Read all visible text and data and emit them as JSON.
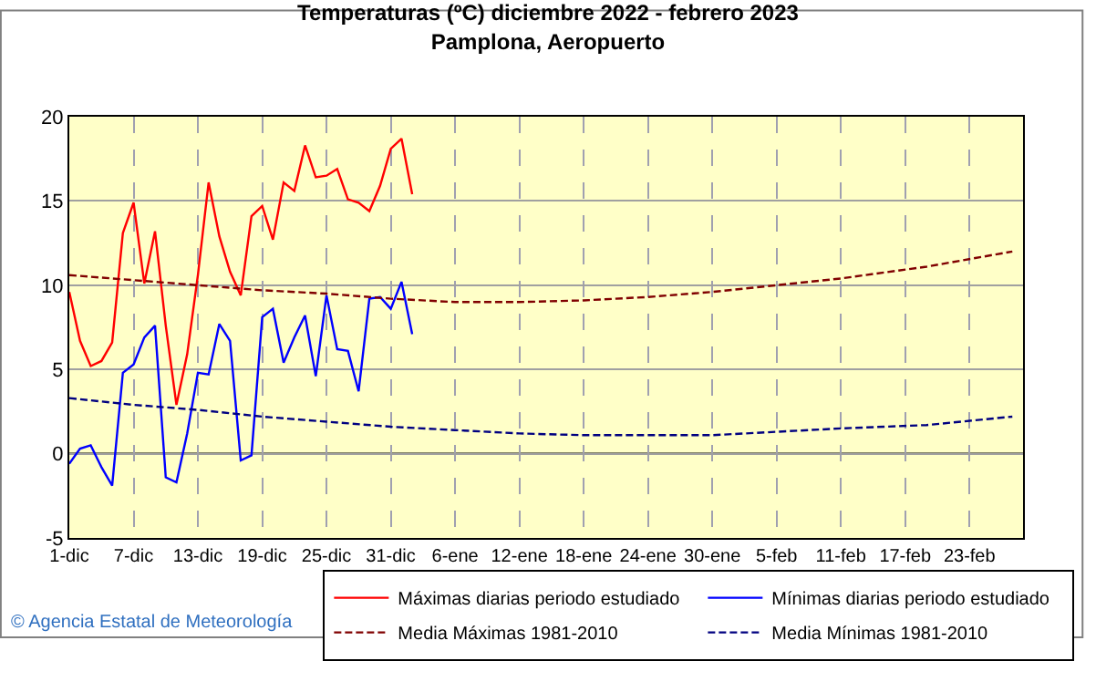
{
  "chart_data": {
    "type": "line",
    "title": "Temperaturas (ºC) diciembre 2022 - febrero 2023",
    "subtitle": "Pamplona, Aeropuerto",
    "xlim": [
      "2022-12-01",
      "2023-02-28"
    ],
    "ylim": [
      -5,
      20
    ],
    "yticks": [
      -5,
      0,
      5,
      10,
      15,
      20
    ],
    "xticks": [
      {
        "value": "2022-12-01",
        "label": "1-dic"
      },
      {
        "value": "2022-12-07",
        "label": "7-dic"
      },
      {
        "value": "2022-12-13",
        "label": "13-dic"
      },
      {
        "value": "2022-12-19",
        "label": "19-dic"
      },
      {
        "value": "2022-12-25",
        "label": "25-dic"
      },
      {
        "value": "2022-12-31",
        "label": "31-dic"
      },
      {
        "value": "2023-01-06",
        "label": "6-ene"
      },
      {
        "value": "2023-01-12",
        "label": "12-ene"
      },
      {
        "value": "2023-01-18",
        "label": "18-ene"
      },
      {
        "value": "2023-01-24",
        "label": "24-ene"
      },
      {
        "value": "2023-01-30",
        "label": "30-ene"
      },
      {
        "value": "2023-02-05",
        "label": "5-feb"
      },
      {
        "value": "2023-02-11",
        "label": "11-feb"
      },
      {
        "value": "2023-02-17",
        "label": "17-feb"
      },
      {
        "value": "2023-02-23",
        "label": "23-feb"
      }
    ],
    "grid": true,
    "legend": "bottom",
    "marker": "none",
    "ref_lines": [
      {
        "axis": "y",
        "value": 0,
        "label": null,
        "color": "#000000"
      }
    ],
    "annotations": [
      "© Agencia Estatal de Meteorología"
    ],
    "series": [
      {
        "name": "Máximas diarias periodo estudiado",
        "color": "#ff0000",
        "line_style": "solid",
        "x": [
          "2022-12-01",
          "2022-12-02",
          "2022-12-03",
          "2022-12-04",
          "2022-12-05",
          "2022-12-06",
          "2022-12-07",
          "2022-12-08",
          "2022-12-09",
          "2022-12-10",
          "2022-12-11",
          "2022-12-12",
          "2022-12-13",
          "2022-12-14",
          "2022-12-15",
          "2022-12-16",
          "2022-12-17",
          "2022-12-18",
          "2022-12-19",
          "2022-12-20",
          "2022-12-21",
          "2022-12-22",
          "2022-12-23",
          "2022-12-24",
          "2022-12-25",
          "2022-12-26",
          "2022-12-27",
          "2022-12-28",
          "2022-12-29",
          "2022-12-30",
          "2022-12-31",
          "2023-01-01",
          "2023-01-02"
        ],
        "values": [
          9.6,
          6.7,
          5.2,
          5.5,
          6.6,
          13.1,
          14.9,
          10.1,
          13.2,
          7.6,
          2.9,
          5.9,
          10.6,
          16.1,
          12.9,
          10.8,
          9.4,
          14.1,
          14.7,
          12.7,
          16.1,
          15.6,
          18.3,
          16.4,
          16.5,
          16.9,
          15.1,
          14.9,
          14.4,
          15.9,
          18.1,
          18.7,
          15.4
        ]
      },
      {
        "name": "Mínimas diarias periodo estudiado",
        "color": "#0000ff",
        "line_style": "solid",
        "x": [
          "2022-12-01",
          "2022-12-02",
          "2022-12-03",
          "2022-12-04",
          "2022-12-05",
          "2022-12-06",
          "2022-12-07",
          "2022-12-08",
          "2022-12-09",
          "2022-12-10",
          "2022-12-11",
          "2022-12-12",
          "2022-12-13",
          "2022-12-14",
          "2022-12-15",
          "2022-12-16",
          "2022-12-17",
          "2022-12-18",
          "2022-12-19",
          "2022-12-20",
          "2022-12-21",
          "2022-12-22",
          "2022-12-23",
          "2022-12-24",
          "2022-12-25",
          "2022-12-26",
          "2022-12-27",
          "2022-12-28",
          "2022-12-29",
          "2022-12-30",
          "2022-12-31",
          "2023-01-01",
          "2023-01-02"
        ],
        "values": [
          -0.6,
          0.3,
          0.5,
          -0.8,
          -1.9,
          4.8,
          5.3,
          6.9,
          7.6,
          -1.4,
          -1.7,
          1.2,
          4.8,
          4.7,
          7.7,
          6.7,
          -0.4,
          -0.1,
          8.1,
          8.6,
          5.4,
          6.9,
          8.2,
          4.6,
          9.4,
          6.2,
          6.1,
          3.7,
          9.2,
          9.3,
          8.6,
          10.2,
          7.1
        ]
      },
      {
        "name": "Media Máximas 1981-2010",
        "color": "#800000",
        "line_style": "dashed",
        "x": [
          "2022-12-01",
          "2022-12-07",
          "2022-12-13",
          "2022-12-19",
          "2022-12-25",
          "2022-12-31",
          "2023-01-06",
          "2023-01-12",
          "2023-01-18",
          "2023-01-24",
          "2023-01-30",
          "2023-02-05",
          "2023-02-11",
          "2023-02-19",
          "2023-02-27"
        ],
        "values": [
          10.6,
          10.3,
          10.0,
          9.7,
          9.5,
          9.2,
          9.0,
          9.0,
          9.1,
          9.3,
          9.6,
          10.0,
          10.4,
          11.1,
          12.0
        ]
      },
      {
        "name": "Media Mínimas 1981-2010",
        "color": "#000080",
        "line_style": "dashed",
        "x": [
          "2022-12-01",
          "2022-12-07",
          "2022-12-13",
          "2022-12-19",
          "2022-12-25",
          "2022-12-31",
          "2023-01-06",
          "2023-01-12",
          "2023-01-18",
          "2023-01-24",
          "2023-01-30",
          "2023-02-05",
          "2023-02-11",
          "2023-02-19",
          "2023-02-27"
        ],
        "values": [
          3.3,
          2.9,
          2.6,
          2.2,
          1.9,
          1.6,
          1.4,
          1.2,
          1.1,
          1.1,
          1.1,
          1.3,
          1.5,
          1.7,
          2.2
        ]
      }
    ]
  }
}
